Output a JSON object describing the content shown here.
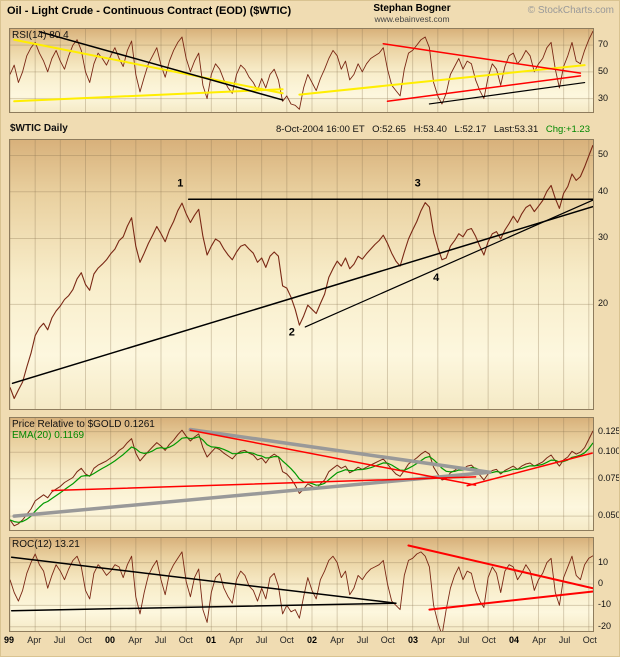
{
  "header": {
    "title": "Oil - Light Crude - Continuous Contract (EOD) ($WTIC)",
    "author": "Stephan Bogner",
    "website": "www.ebainvest.com",
    "copyright": "© StockCharts.com"
  },
  "quote": {
    "date": "8-Oct-2004 16:00 ET",
    "open": "O:52.65",
    "high": "H:53.40",
    "low": "L:52.17",
    "last": "Last:53.31",
    "chg": "Chg:+1.23"
  },
  "chart_data": {
    "type": "line",
    "title": "Oil - Light Crude - Continuous Contract (EOD) ($WTIC)",
    "xlabel": "",
    "ylabel": "",
    "grid": true,
    "x_unit": "months since Jan-1999",
    "x_range": [
      0,
      69.5
    ],
    "x_start": 0,
    "x_step": 0.5,
    "grid_color": "#8a7452",
    "x_ticks": [
      {
        "m": 0,
        "label": "99",
        "bold": true
      },
      {
        "m": 3,
        "label": "Apr"
      },
      {
        "m": 6,
        "label": "Jul"
      },
      {
        "m": 9,
        "label": "Oct"
      },
      {
        "m": 12,
        "label": "00",
        "bold": true
      },
      {
        "m": 15,
        "label": "Apr"
      },
      {
        "m": 18,
        "label": "Jul"
      },
      {
        "m": 21,
        "label": "Oct"
      },
      {
        "m": 24,
        "label": "01",
        "bold": true
      },
      {
        "m": 27,
        "label": "Apr"
      },
      {
        "m": 30,
        "label": "Jul"
      },
      {
        "m": 33,
        "label": "Oct"
      },
      {
        "m": 36,
        "label": "02",
        "bold": true
      },
      {
        "m": 39,
        "label": "Apr"
      },
      {
        "m": 42,
        "label": "Jul"
      },
      {
        "m": 45,
        "label": "Oct"
      },
      {
        "m": 48,
        "label": "03",
        "bold": true
      },
      {
        "m": 51,
        "label": "Apr"
      },
      {
        "m": 54,
        "label": "Jul"
      },
      {
        "m": 57,
        "label": "Oct"
      },
      {
        "m": 60,
        "label": "04",
        "bold": true
      },
      {
        "m": 63,
        "label": "Apr"
      },
      {
        "m": 66,
        "label": "Jul"
      },
      {
        "m": 69,
        "label": "Oct"
      }
    ],
    "panels": [
      {
        "id": "rsi",
        "label": "RSI(14) 80.4",
        "scale": "linear",
        "ylim": [
          20,
          82
        ],
        "yticks": [
          70,
          50,
          30
        ],
        "ytick_labels": [
          "70",
          "50",
          "30"
        ],
        "series": [
          {
            "name": "RSI(14)",
            "color": "#7a2815",
            "width": 0.9,
            "values": [
              48,
              55,
              42,
              50,
              62,
              68,
              72,
              64,
              58,
              50,
              60,
              66,
              58,
              52,
              62,
              70,
              74,
              66,
              50,
              42,
              56,
              64,
              60,
              55,
              62,
              68,
              60,
              54,
              66,
              73,
              48,
              35,
              46,
              56,
              62,
              68,
              55,
              46,
              58,
              66,
              72,
              76,
              60,
              50,
              58,
              64,
              40,
              30,
              48,
              56,
              52,
              44,
              38,
              34,
              48,
              55,
              52,
              46,
              42,
              36,
              45,
              38,
              48,
              52,
              44,
              28,
              32,
              26,
              25,
              22,
              38,
              48,
              42,
              36,
              45,
              52,
              60,
              66,
              62,
              52,
              58,
              44,
              48,
              56,
              50,
              56,
              60,
              62,
              64,
              68,
              52,
              40,
              36,
              32,
              52,
              64,
              66,
              70,
              74,
              76,
              68,
              42,
              32,
              26,
              34,
              48,
              54,
              60,
              52,
              58,
              56,
              44,
              36,
              30,
              46,
              56,
              52,
              40,
              54,
              62,
              64,
              56,
              60,
              66,
              62,
              50,
              56,
              60,
              68,
              72,
              52,
              38,
              54,
              62,
              72,
              58,
              56,
              66,
              74,
              80.4
            ]
          }
        ],
        "lines": [
          {
            "x1": 0.5,
            "y1": 74,
            "x2": 32.5,
            "y2": 34,
            "color": "#ffee00",
            "width": 2
          },
          {
            "x1": 0.5,
            "y1": 28,
            "x2": 32.5,
            "y2": 37,
            "color": "#ffee00",
            "width": 2
          },
          {
            "x1": 3.5,
            "y1": 80,
            "x2": 32.5,
            "y2": 29,
            "color": "#000000",
            "width": 1.5
          },
          {
            "x1": 34.5,
            "y1": 33,
            "x2": 68.5,
            "y2": 55,
            "color": "#ffee00",
            "width": 2
          },
          {
            "x1": 44.5,
            "y1": 71,
            "x2": 68,
            "y2": 49,
            "color": "#ff0000",
            "width": 1.5
          },
          {
            "x1": 45,
            "y1": 28,
            "x2": 68,
            "y2": 47,
            "color": "#ff0000",
            "width": 1.5
          },
          {
            "x1": 50,
            "y1": 26,
            "x2": 68.5,
            "y2": 42,
            "color": "#000000",
            "width": 1.2
          }
        ],
        "point_labels": []
      },
      {
        "id": "price",
        "label": "$WTIC Daily",
        "scale": "log",
        "ylim": [
          10.5,
          55
        ],
        "yticks": [
          50,
          40,
          30,
          20
        ],
        "ytick_labels": [
          "50",
          "40",
          "30",
          "20"
        ],
        "series": [
          {
            "name": "$WTIC",
            "color": "#7a2815",
            "width": 1.1,
            "values": [
              12.0,
              11.2,
              11.8,
              12.4,
              13.6,
              14.8,
              16.5,
              17.3,
              17.8,
              17.1,
              18.4,
              19.2,
              19.8,
              20.6,
              21.1,
              21.9,
              23.4,
              24.3,
              22.6,
              21.8,
              24.1,
              25.0,
              25.6,
              26.3,
              27.3,
              28.1,
              29.6,
              30.3,
              32.4,
              34.1,
              28.6,
              25.9,
              27.4,
              29.1,
              30.6,
              32.3,
              30.9,
              29.4,
              31.6,
              33.3,
              35.6,
              37.3,
              34.9,
              33.1,
              34.6,
              35.9,
              30.4,
              27.1,
              28.6,
              29.9,
              29.4,
              28.1,
              27.1,
              26.3,
              27.6,
              28.6,
              28.9,
              28.1,
              27.4,
              25.9,
              26.6,
              25.1,
              26.9,
              27.6,
              26.9,
              22.4,
              22.1,
              20.9,
              19.4,
              17.6,
              18.6,
              19.9,
              19.4,
              18.9,
              20.1,
              21.3,
              23.6,
              24.9,
              26.1,
              25.3,
              26.6,
              24.9,
              25.6,
              26.9,
              26.4,
              27.3,
              28.1,
              28.9,
              29.6,
              30.6,
              29.1,
              27.4,
              26.1,
              25.3,
              27.6,
              29.9,
              31.6,
              33.3,
              35.6,
              37.4,
              36.4,
              31.1,
              28.4,
              26.3,
              26.6,
              28.6,
              29.6,
              30.9,
              30.3,
              31.6,
              31.9,
              30.4,
              28.6,
              27.1,
              29.4,
              30.9,
              31.3,
              29.9,
              31.6,
              32.9,
              34.4,
              33.1,
              34.9,
              36.3,
              36.9,
              35.4,
              36.6,
              37.9,
              40.1,
              41.6,
              38.4,
              36.1,
              39.6,
              41.3,
              44.6,
              42.9,
              43.9,
              46.6,
              49.9,
              53.3
            ]
          }
        ],
        "lines": [
          {
            "x1": 21.3,
            "y1": 38.2,
            "x2": 69.5,
            "y2": 38.2,
            "color": "#000000",
            "width": 1.5
          },
          {
            "x1": 0.3,
            "y1": 12.3,
            "x2": 69.5,
            "y2": 36.5,
            "color": "#000000",
            "width": 1.5
          },
          {
            "x1": 35.2,
            "y1": 17.4,
            "x2": 69.5,
            "y2": 38.0,
            "color": "#000000",
            "width": 1.2
          }
        ],
        "point_labels": [
          {
            "text": "1",
            "m": 20.3,
            "v": 42
          },
          {
            "text": "2",
            "m": 33.6,
            "v": 16.8
          },
          {
            "text": "3",
            "m": 48.6,
            "v": 42
          },
          {
            "text": "4",
            "m": 50.8,
            "v": 23.5
          }
        ]
      },
      {
        "id": "pr",
        "label": "Price Relative to $GOLD 0.1261",
        "label2": "EMA(20) 0.1169",
        "scale": "log",
        "ylim": [
          0.043,
          0.145
        ],
        "yticks": [
          0.125,
          0.1,
          0.075,
          0.05
        ],
        "ytick_labels": [
          "0.125",
          "0.100",
          "0.075",
          "0.050"
        ],
        "series": [
          {
            "name": "Price Relative to $GOLD",
            "color": "#7a2815",
            "width": 1,
            "values": [
              0.048,
              0.045,
              0.046,
              0.048,
              0.051,
              0.054,
              0.059,
              0.061,
              0.063,
              0.061,
              0.065,
              0.067,
              0.069,
              0.072,
              0.074,
              0.076,
              0.081,
              0.084,
              0.079,
              0.077,
              0.084,
              0.087,
              0.089,
              0.091,
              0.094,
              0.097,
              0.102,
              0.105,
              0.111,
              0.116,
              0.099,
              0.091,
              0.096,
              0.101,
              0.106,
              0.111,
              0.107,
              0.102,
              0.109,
              0.114,
              0.121,
              0.127,
              0.119,
              0.113,
              0.118,
              0.122,
              0.105,
              0.095,
              0.1,
              0.105,
              0.103,
              0.099,
              0.096,
              0.093,
              0.098,
              0.101,
              0.102,
              0.099,
              0.097,
              0.092,
              0.094,
              0.089,
              0.095,
              0.098,
              0.095,
              0.081,
              0.079,
              0.075,
              0.07,
              0.064,
              0.067,
              0.071,
              0.069,
              0.067,
              0.071,
              0.074,
              0.081,
              0.084,
              0.087,
              0.084,
              0.086,
              0.08,
              0.082,
              0.085,
              0.083,
              0.085,
              0.087,
              0.089,
              0.091,
              0.093,
              0.088,
              0.083,
              0.079,
              0.077,
              0.082,
              0.088,
              0.091,
              0.094,
              0.098,
              0.101,
              0.098,
              0.085,
              0.079,
              0.074,
              0.075,
              0.08,
              0.082,
              0.085,
              0.083,
              0.086,
              0.087,
              0.083,
              0.078,
              0.074,
              0.079,
              0.082,
              0.083,
              0.079,
              0.082,
              0.084,
              0.086,
              0.083,
              0.086,
              0.088,
              0.089,
              0.086,
              0.088,
              0.09,
              0.094,
              0.097,
              0.091,
              0.086,
              0.092,
              0.095,
              0.101,
              0.098,
              0.1,
              0.105,
              0.115,
              0.126
            ]
          },
          {
            "name": "EMA(20)",
            "color": "#009900",
            "width": 1.2,
            "ema_of": 0,
            "alpha": 0.3
          }
        ],
        "lines": [
          {
            "x1": 21.5,
            "y1": 0.128,
            "x2": 57.2,
            "y2": 0.0805,
            "color": "#999999",
            "width": 3.5
          },
          {
            "x1": 0.5,
            "y1": 0.05,
            "x2": 57.2,
            "y2": 0.0805,
            "color": "#999999",
            "width": 3.5
          },
          {
            "x1": 21.5,
            "y1": 0.127,
            "x2": 55.5,
            "y2": 0.07,
            "color": "#ff0000",
            "width": 1.5
          },
          {
            "x1": 5,
            "y1": 0.066,
            "x2": 55.5,
            "y2": 0.0765,
            "color": "#ff0000",
            "width": 1.5
          },
          {
            "x1": 54.5,
            "y1": 0.0695,
            "x2": 69.4,
            "y2": 0.099,
            "color": "#ff0000",
            "width": 1.5
          }
        ],
        "point_labels": []
      },
      {
        "id": "roc",
        "label": "ROC(12) 13.21",
        "scale": "linear",
        "ylim": [
          -22,
          21.5
        ],
        "yticks": [
          10,
          0,
          -10,
          -20
        ],
        "ytick_labels": [
          "10",
          "0",
          "-10",
          "-20"
        ],
        "series": [
          {
            "name": "ROC(12)",
            "color": "#7a2815",
            "width": 0.9,
            "values": [
              2,
              -4,
              -8,
              -3,
              5,
              10,
              14,
              9,
              6,
              -2,
              4,
              9,
              6,
              2,
              7,
              11,
              13,
              8,
              -3,
              -7,
              5,
              9,
              7,
              4,
              6,
              9,
              8,
              3,
              9,
              13,
              -6,
              -14,
              -4,
              4,
              8,
              11,
              2,
              -5,
              5,
              9,
              12,
              15,
              1,
              -6,
              3,
              7,
              -12,
              -18,
              -4,
              3,
              5,
              -2,
              -6,
              -9,
              2,
              6,
              4,
              -1,
              -3,
              -8,
              -2,
              -7,
              3,
              5,
              -1,
              -14,
              -10,
              -13,
              -12,
              -16,
              -6,
              3,
              -3,
              -7,
              2,
              6,
              11,
              13,
              10,
              3,
              6,
              -5,
              -2,
              4,
              2,
              5,
              7,
              8,
              9,
              11,
              0,
              -8,
              -10,
              -12,
              4,
              11,
              12,
              14,
              15,
              13,
              8,
              -10,
              -18,
              -24,
              -12,
              -2,
              4,
              8,
              2,
              6,
              5,
              -3,
              -8,
              -11,
              3,
              8,
              5,
              -4,
              6,
              9,
              8,
              2,
              5,
              9,
              6,
              -3,
              2,
              5,
              10,
              12,
              -4,
              -10,
              3,
              8,
              13,
              4,
              2,
              9,
              12,
              13.2
            ]
          }
        ],
        "lines": [
          {
            "x1": 0.2,
            "y1": 12.5,
            "x2": 46,
            "y2": -9,
            "color": "#000000",
            "width": 1.5
          },
          {
            "x1": 0.2,
            "y1": -12.5,
            "x2": 46,
            "y2": -9,
            "color": "#000000",
            "width": 1.5
          },
          {
            "x1": 47.5,
            "y1": 18,
            "x2": 69.5,
            "y2": -2,
            "color": "#ff0000",
            "width": 2
          },
          {
            "x1": 50,
            "y1": -12,
            "x2": 69.5,
            "y2": -3.5,
            "color": "#ff0000",
            "width": 2
          }
        ],
        "point_labels": []
      }
    ]
  }
}
